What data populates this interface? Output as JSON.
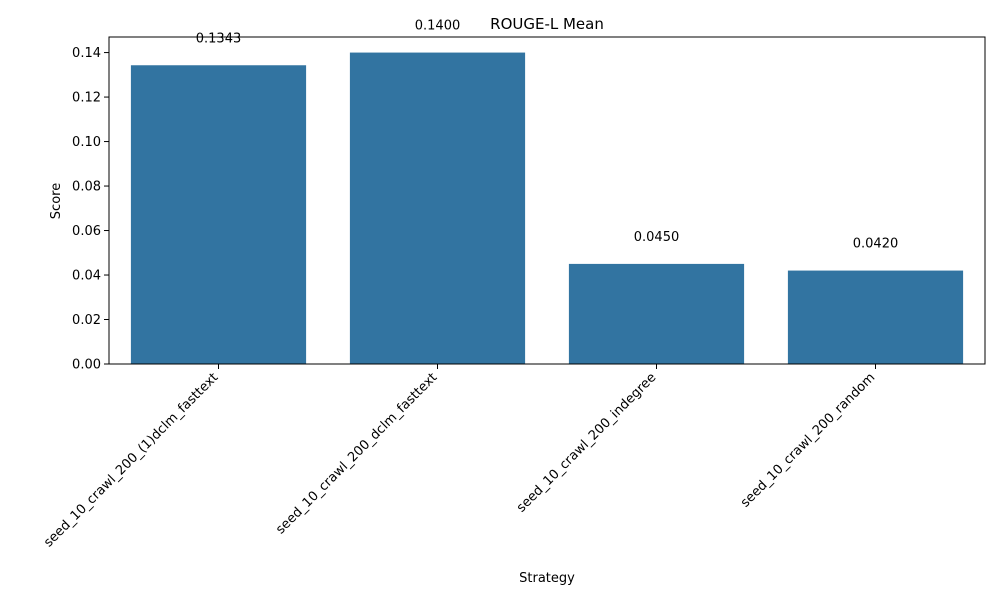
{
  "chart_data": {
    "type": "bar",
    "title": "ROUGE-L Mean",
    "xlabel": "Strategy",
    "ylabel": "Score",
    "categories": [
      "seed_10_crawl_200_(1)dclm_fasttext",
      "seed_10_crawl_200_dclm_fasttext",
      "seed_10_crawl_200_indegree",
      "seed_10_crawl_200_random"
    ],
    "values": [
      0.1343,
      0.14,
      0.045,
      0.042
    ],
    "value_labels": [
      "0.1343",
      "0.1400",
      "0.0450",
      "0.0420"
    ],
    "ylim": [
      0,
      0.147
    ],
    "yticks": [
      0.0,
      0.02,
      0.04,
      0.06,
      0.08,
      0.1,
      0.12,
      0.14
    ],
    "ytick_labels": [
      "0.00",
      "0.02",
      "0.04",
      "0.06",
      "0.08",
      "0.10",
      "0.12",
      "0.14"
    ],
    "bar_color": "#3274a1",
    "grid": false,
    "legend": "none"
  }
}
